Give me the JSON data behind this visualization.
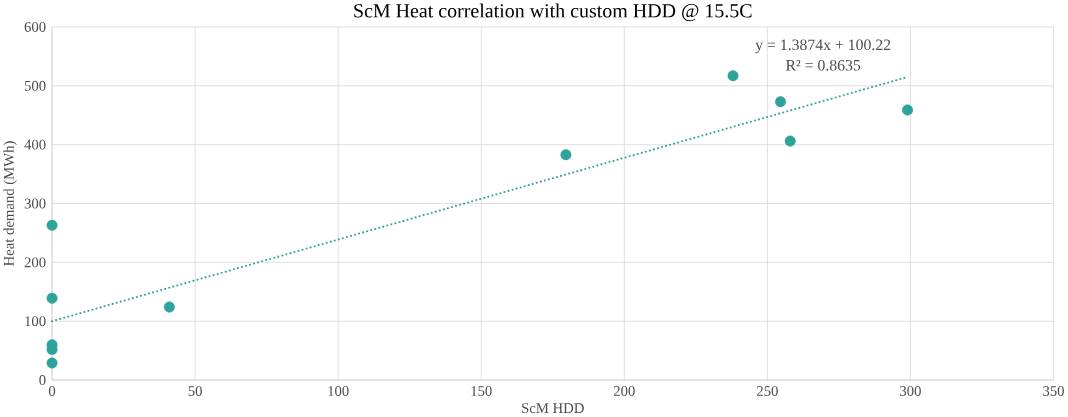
{
  "chart_data": {
    "type": "scatter",
    "title": "ScM Heat correlation with custom HDD @ 15.5C",
    "xlabel": "ScM HDD",
    "ylabel": "Heat demand (MWh)",
    "series": [
      {
        "color": "#2ea39b",
        "marker": "circle",
        "x": [
          0,
          0,
          0,
          0,
          0,
          41,
          179.6,
          238,
          254.6,
          258,
          299
        ],
        "values": [
          263,
          139,
          60,
          52,
          29,
          124,
          383,
          517,
          473,
          406,
          459
        ]
      },
      {
        "type": "line",
        "color": "#2ea39b",
        "line_style": "dotted",
        "marker": "none",
        "x": [
          0,
          299
        ],
        "values": [
          100,
          515
        ]
      }
    ],
    "annotations": [
      "y = 1.3874x + 100.22",
      "R² = 0.8635"
    ],
    "xlim": [
      0,
      350
    ],
    "ylim": [
      0,
      600
    ],
    "xticks": [
      0,
      50,
      100,
      150,
      200,
      250,
      300,
      350
    ],
    "yticks": [
      0,
      100,
      200,
      300,
      400,
      500,
      600
    ],
    "grid": true
  }
}
